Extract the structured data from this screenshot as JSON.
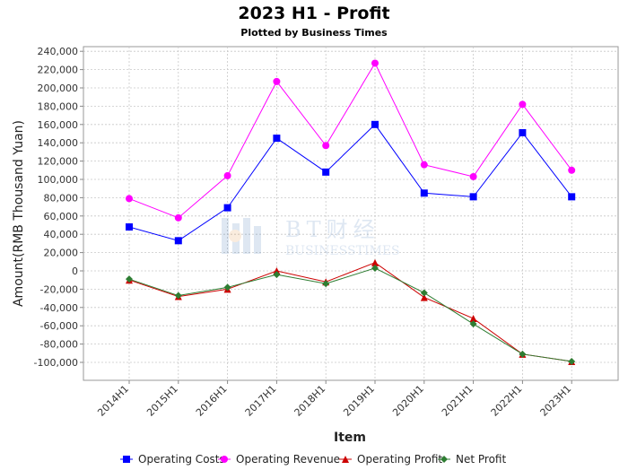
{
  "chart_data": {
    "type": "line",
    "title": "2023 H1 - Profit",
    "subtitle": "Plotted by Business Times",
    "xlabel": "Item",
    "ylabel": "Amount(RMB Thousand Yuan)",
    "categories": [
      "2014H1",
      "2015H1",
      "2016H1",
      "2017H1",
      "2018H1",
      "2019H1",
      "2020H1",
      "2021H1",
      "2022H1",
      "2023H1"
    ],
    "ylim": [
      -120000,
      250000
    ],
    "yticks": [
      -100000,
      -80000,
      -60000,
      -40000,
      -20000,
      0,
      20000,
      40000,
      60000,
      80000,
      100000,
      120000,
      140000,
      160000,
      180000,
      200000,
      220000,
      240000
    ],
    "ytick_labels": [
      "-100,000",
      "-80,000",
      "-60,000",
      "-40,000",
      "-20,000",
      "0",
      "20,000",
      "40,000",
      "60,000",
      "80,000",
      "100,000",
      "120,000",
      "140,000",
      "160,000",
      "180,000",
      "200,000",
      "220,000",
      "240,000"
    ],
    "grid": true,
    "legend_position": "bottom",
    "series": [
      {
        "name": "Operating Costs",
        "color": "#0000ff",
        "marker": "square",
        "values": [
          48000,
          33000,
          69000,
          145000,
          108000,
          160000,
          85000,
          81000,
          151000,
          81000
        ]
      },
      {
        "name": "Operating Revenue",
        "color": "#ff00ff",
        "marker": "circle",
        "values": [
          79000,
          58000,
          104000,
          207000,
          137000,
          227000,
          116000,
          103000,
          182000,
          110000
        ]
      },
      {
        "name": "Operating Profit",
        "color": "#cc0000",
        "marker": "triangle",
        "values": [
          -10000,
          -28000,
          -20000,
          0,
          -12000,
          9000,
          -29000,
          -52000,
          -91000,
          -99000
        ]
      },
      {
        "name": "Net Profit",
        "color": "#2e7d32",
        "marker": "diamond",
        "values": [
          -9000,
          -27000,
          -18000,
          -4000,
          -14000,
          3000,
          -24000,
          -58000,
          -91000,
          -99000
        ]
      }
    ]
  },
  "watermark": {
    "logo_text": "BT财经",
    "sub_text": "BUSINESSTIMES"
  }
}
